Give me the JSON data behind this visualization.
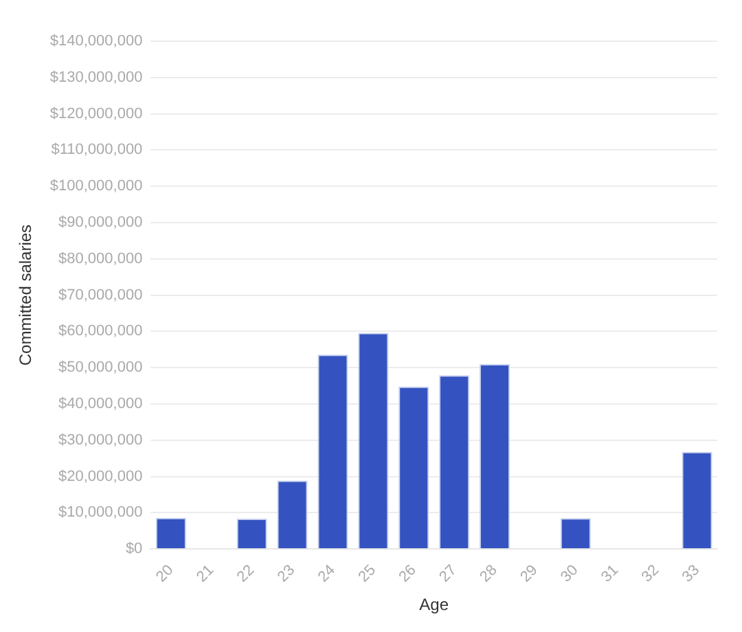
{
  "chart_data": {
    "type": "bar",
    "xlabel": "Age",
    "ylabel": "Committed salaries",
    "categories": [
      "20",
      "21",
      "22",
      "23",
      "24",
      "25",
      "26",
      "27",
      "28",
      "29",
      "30",
      "31",
      "32",
      "33"
    ],
    "values": [
      8600000.0,
      null,
      8400000.0,
      18900000.0,
      53600000.0,
      59600000.0,
      44800000.0,
      47900000.0,
      51000000.0,
      null,
      8500000.0,
      null,
      null,
      26800000.0
    ],
    "color": "#3453c0",
    "ylim": [
      0,
      140000000
    ],
    "yticks": [
      {
        "value": 0,
        "label": "$0"
      },
      {
        "value": 10000000,
        "label": "$10,000,000"
      },
      {
        "value": 20000000,
        "label": "$20,000,000"
      },
      {
        "value": 30000000,
        "label": "$30,000,000"
      },
      {
        "value": 40000000,
        "label": "$40,000,000"
      },
      {
        "value": 50000000,
        "label": "$50,000,000"
      },
      {
        "value": 60000000,
        "label": "$60,000,000"
      },
      {
        "value": 70000000,
        "label": "$70,000,000"
      },
      {
        "value": 80000000,
        "label": "$80,000,000"
      },
      {
        "value": 90000000,
        "label": "$90,000,000"
      },
      {
        "value": 100000000,
        "label": "$100,000,000"
      },
      {
        "value": 110000000,
        "label": "$110,000,000"
      },
      {
        "value": 120000000,
        "label": "$120,000,000"
      },
      {
        "value": 130000000,
        "label": "$130,000,000"
      },
      {
        "value": 140000000,
        "label": "$140,000,000"
      }
    ],
    "grid": "y"
  }
}
